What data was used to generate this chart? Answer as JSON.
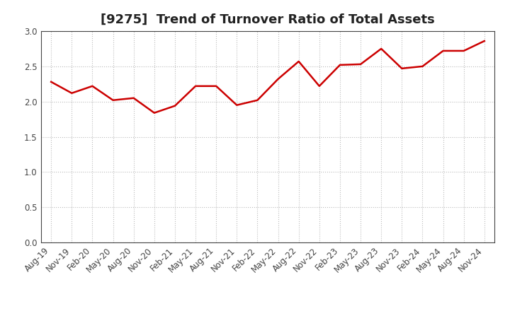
{
  "title": "[9275]  Trend of Turnover Ratio of Total Assets",
  "x_labels": [
    "Aug-19",
    "Nov-19",
    "Feb-20",
    "May-20",
    "Aug-20",
    "Nov-20",
    "Feb-21",
    "May-21",
    "Aug-21",
    "Nov-21",
    "Feb-22",
    "May-22",
    "Aug-22",
    "Nov-22",
    "Feb-23",
    "May-23",
    "Aug-23",
    "Nov-23",
    "Feb-24",
    "May-24",
    "Aug-24",
    "Nov-24"
  ],
  "y_values": [
    2.28,
    2.12,
    2.22,
    2.02,
    2.05,
    1.84,
    1.94,
    2.22,
    2.22,
    1.95,
    2.02,
    2.32,
    2.57,
    2.22,
    2.52,
    2.53,
    2.75,
    2.47,
    2.5,
    2.72,
    2.72,
    2.86
  ],
  "line_color": "#cc0000",
  "line_width": 1.8,
  "ylim": [
    0.0,
    3.0
  ],
  "yticks": [
    0.0,
    0.5,
    1.0,
    1.5,
    2.0,
    2.5,
    3.0
  ],
  "ytick_labels": [
    "0.0",
    "0.5",
    "1.0",
    "1.5",
    "2.0",
    "2.5",
    "3.0"
  ],
  "background_color": "#ffffff",
  "grid_color": "#bbbbbb",
  "title_fontsize": 13,
  "tick_fontsize": 8.5,
  "title_color": "#222222"
}
